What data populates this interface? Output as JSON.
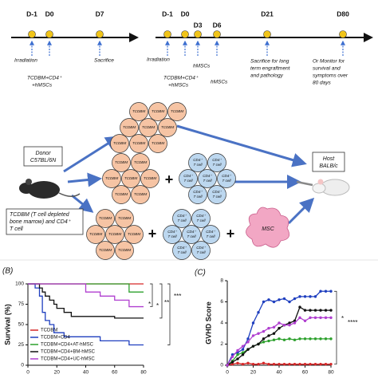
{
  "timeline_a": {
    "days": [
      "D-1",
      "D0",
      "D7"
    ],
    "notes": {
      "irradiation": "Irradiation",
      "injection": [
        "TCDBM+CD4⁺",
        "+hMSCs"
      ],
      "sacrifice": "Sacrifice"
    }
  },
  "timeline_b": {
    "days": [
      "D-1",
      "D0",
      "D3",
      "D6",
      "D21",
      "D80"
    ],
    "notes": {
      "irradiation": "Irradiation",
      "injection": [
        "TCDBM+CD4⁺",
        "+hMSCs"
      ],
      "hmscs_d3": "hMSCs",
      "hmscs_d6": "hMSCs",
      "sacrifice": [
        "Sacrifice for long",
        "term engraftment",
        "and pathology"
      ],
      "monitor": [
        "Or Monitor for",
        "survival and",
        "symptoms over",
        "80 days"
      ]
    }
  },
  "diagram": {
    "donor": [
      "Donor",
      "C57BL/6N"
    ],
    "host": [
      "Host",
      "BALB/c"
    ],
    "mixture": [
      "TCDBM (T cell depleted",
      "bone marrow) and CD4⁺",
      "T cell"
    ],
    "cells": {
      "tcdbm": "TCDBM",
      "cd4": [
        "CD4⁺",
        "T cell"
      ],
      "msc": "MSC"
    },
    "plus": "+"
  },
  "chart_data": [
    {
      "type": "line",
      "step": true,
      "panel_label": "(B)",
      "ylabel": "Survival (%)",
      "x": [
        0,
        5,
        8,
        10,
        12,
        15,
        18,
        20,
        25,
        30,
        40,
        50,
        60,
        65,
        70,
        80
      ],
      "series": [
        {
          "name": "TCDBM",
          "color": "#d62728",
          "values": [
            100,
            100,
            100,
            100,
            100,
            100,
            100,
            100,
            100,
            100,
            100,
            100,
            100,
            100,
            100,
            100
          ]
        },
        {
          "name": "TCDBM+CD4",
          "color": "#1f3fbf",
          "values": [
            100,
            95,
            85,
            65,
            55,
            50,
            40,
            40,
            35,
            35,
            35,
            30,
            30,
            30,
            25,
            25
          ]
        },
        {
          "name": "TCDBM+CD4+AT-hMSC",
          "color": "#2ca02c",
          "values": [
            100,
            100,
            100,
            100,
            100,
            100,
            100,
            100,
            100,
            100,
            100,
            100,
            100,
            100,
            90,
            90
          ]
        },
        {
          "name": "TCDBM+CD4+BM-hMSC",
          "color": "#111111",
          "values": [
            100,
            100,
            95,
            90,
            85,
            80,
            75,
            70,
            65,
            60,
            60,
            60,
            58,
            58,
            58,
            58
          ]
        },
        {
          "name": "TCDBM+CD4+UC-hMSC",
          "color": "#b03fd0",
          "values": [
            100,
            100,
            100,
            100,
            100,
            100,
            100,
            100,
            100,
            100,
            90,
            85,
            80,
            80,
            72,
            72
          ]
        }
      ],
      "xlim": [
        0,
        80
      ],
      "ylim": [
        0,
        100
      ],
      "xticks": [
        0,
        20,
        40,
        60,
        80
      ],
      "yticks": [
        0,
        25,
        50,
        75,
        100
      ],
      "legend": "lower left",
      "annotations": [
        "*",
        "*",
        "**",
        "***"
      ]
    },
    {
      "type": "line",
      "markers": true,
      "panel_label": "(C)",
      "ylabel": "GVHD Score",
      "x": [
        0,
        4,
        8,
        12,
        16,
        20,
        24,
        28,
        32,
        36,
        40,
        44,
        48,
        52,
        56,
        60,
        64,
        68,
        72,
        76,
        80
      ],
      "series": [
        {
          "name": "TCDBM",
          "color": "#d62728",
          "values": [
            0,
            0.1,
            0.2,
            0.1,
            0.2,
            0.1,
            0.1,
            0.2,
            0.1,
            0.1,
            0.1,
            0.1,
            0.1,
            0.1,
            0.1,
            0.1,
            0.1,
            0.1,
            0.1,
            0.1,
            0.1
          ]
        },
        {
          "name": "TCDBM+CD4",
          "color": "#1f3fbf",
          "values": [
            0,
            1.0,
            1.2,
            1.5,
            2.5,
            4.0,
            5.0,
            6.0,
            6.2,
            6.0,
            6.2,
            6.3,
            6.0,
            6.3,
            6.5,
            6.5,
            6.5,
            6.5,
            7.0,
            7.0,
            7.0
          ]
        },
        {
          "name": "TCDBM+CD4+AT-hMSC",
          "color": "#2ca02c",
          "values": [
            0,
            0.4,
            1.0,
            1.2,
            1.5,
            1.8,
            2.0,
            2.2,
            2.3,
            2.4,
            2.5,
            2.4,
            2.5,
            2.4,
            2.5,
            2.5,
            2.5,
            2.5,
            2.5,
            2.5,
            2.5
          ]
        },
        {
          "name": "TCDBM+CD4+BM-hMSC",
          "color": "#111111",
          "values": [
            0,
            0.3,
            0.6,
            1.0,
            1.5,
            1.8,
            2.0,
            2.5,
            2.8,
            3.0,
            3.5,
            3.8,
            4.0,
            4.2,
            5.5,
            5.2,
            5.2,
            5.2,
            5.2,
            5.2,
            5.2
          ]
        },
        {
          "name": "TCDBM+CD4+UC-hMSC",
          "color": "#b03fd0",
          "values": [
            0,
            0.8,
            1.4,
            1.8,
            2.2,
            2.8,
            3.0,
            3.2,
            3.5,
            3.6,
            4.0,
            3.8,
            3.8,
            4.0,
            4.5,
            4.2,
            4.5,
            4.5,
            4.5,
            4.5,
            4.5
          ]
        }
      ],
      "xlim": [
        0,
        80
      ],
      "ylim": [
        0,
        8
      ],
      "xticks": [
        0,
        20,
        40,
        60,
        80
      ],
      "yticks": [
        0,
        2,
        4,
        6,
        8
      ],
      "annotations": [
        "*",
        "****"
      ]
    }
  ]
}
